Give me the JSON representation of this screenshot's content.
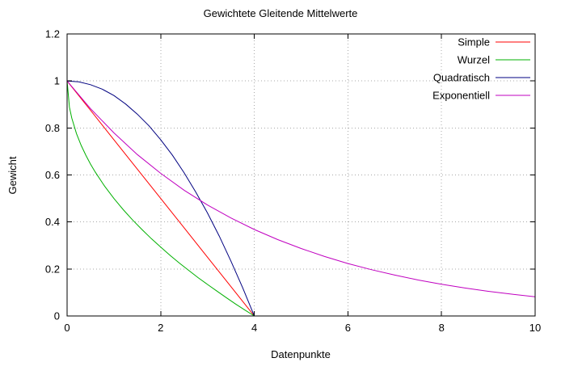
{
  "chart_data": {
    "type": "line",
    "title": "Gewichtete Gleitende Mittelwerte",
    "xlabel": "Datenpunkte",
    "ylabel": "Gewicht",
    "xlim": [
      0,
      10
    ],
    "ylim": [
      0,
      1.2
    ],
    "xticks": [
      0,
      2,
      4,
      6,
      8,
      10
    ],
    "xtick_labels": [
      "0",
      "2",
      "4",
      "6",
      "8",
      "10"
    ],
    "yticks": [
      0,
      0.2,
      0.4,
      0.6,
      0.8,
      1,
      1.2
    ],
    "ytick_labels": [
      "0",
      "0.2",
      "0.4",
      "0.6",
      "0.8",
      "1",
      "1.2"
    ],
    "grid": true,
    "grid_color": "#a8a8a8",
    "axis_color": "#000000",
    "background_color": "#ffffff",
    "legend_position": "top-right-inside",
    "series": [
      {
        "name": "Simple",
        "color": "#ff0000",
        "x": [
          0,
          0.5,
          1,
          1.5,
          2,
          2.5,
          3,
          3.5,
          4
        ],
        "y": [
          1,
          0.875,
          0.75,
          0.625,
          0.5,
          0.375,
          0.25,
          0.125,
          0
        ]
      },
      {
        "name": "Wurzel",
        "color": "#00b000",
        "x": [
          0,
          0.05,
          0.1,
          0.2,
          0.3,
          0.4,
          0.5,
          0.6,
          0.8,
          1,
          1.2,
          1.4,
          1.6,
          1.8,
          2,
          2.2,
          2.4,
          2.6,
          2.8,
          3,
          3.2,
          3.4,
          3.6,
          3.8,
          4
        ],
        "y": [
          1,
          0.888,
          0.842,
          0.776,
          0.726,
          0.684,
          0.646,
          0.613,
          0.553,
          0.5,
          0.452,
          0.408,
          0.368,
          0.329,
          0.293,
          0.258,
          0.225,
          0.194,
          0.163,
          0.134,
          0.106,
          0.078,
          0.051,
          0.025,
          0
        ]
      },
      {
        "name": "Quadratisch",
        "color": "#000080",
        "x": [
          0,
          0.25,
          0.5,
          0.75,
          1,
          1.25,
          1.5,
          1.75,
          2,
          2.25,
          2.5,
          2.75,
          3,
          3.25,
          3.5,
          3.75,
          4
        ],
        "y": [
          1,
          0.996,
          0.984,
          0.965,
          0.938,
          0.902,
          0.859,
          0.809,
          0.75,
          0.684,
          0.609,
          0.527,
          0.438,
          0.34,
          0.234,
          0.121,
          0
        ]
      },
      {
        "name": "Exponentiell",
        "color": "#c000c0",
        "x": [
          0,
          0.5,
          1,
          1.5,
          2,
          2.5,
          3,
          3.5,
          4,
          4.5,
          5,
          5.5,
          6,
          6.5,
          7,
          7.5,
          8,
          8.5,
          9,
          9.5,
          10
        ],
        "y": [
          1,
          0.882,
          0.779,
          0.687,
          0.607,
          0.535,
          0.472,
          0.417,
          0.368,
          0.325,
          0.287,
          0.253,
          0.223,
          0.197,
          0.174,
          0.153,
          0.135,
          0.119,
          0.105,
          0.093,
          0.082
        ]
      }
    ]
  }
}
